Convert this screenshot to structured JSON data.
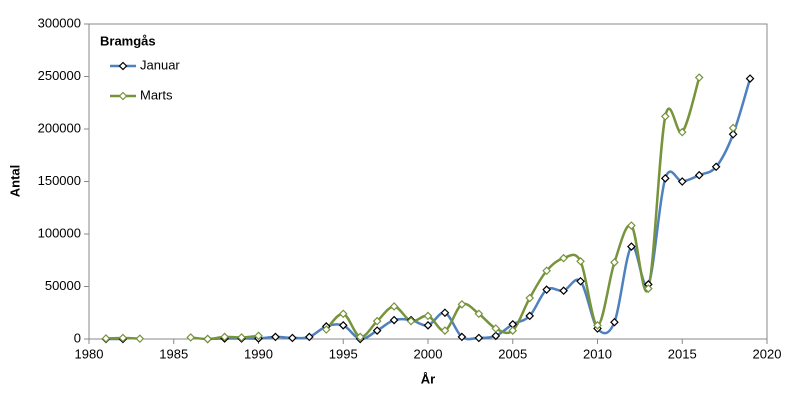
{
  "chart_data": {
    "type": "line",
    "legend_title": "Bramgås",
    "x_label": "År",
    "y_label": "Antal",
    "x": [
      1981,
      1982,
      1983,
      1984,
      1985,
      1986,
      1987,
      1988,
      1989,
      1990,
      1991,
      1992,
      1993,
      1994,
      1995,
      1996,
      1997,
      1998,
      1999,
      2000,
      2001,
      2002,
      2003,
      2004,
      2005,
      2006,
      2007,
      2008,
      2009,
      2010,
      2011,
      2012,
      2013,
      2014,
      2015,
      2016,
      2017,
      2018,
      2019
    ],
    "series": [
      {
        "name": "Januar",
        "color": "#4f81bd",
        "marker_color": "#000000",
        "values": [
          0,
          0,
          null,
          null,
          null,
          null,
          0,
          500,
          500,
          500,
          2000,
          1000,
          2000,
          12000,
          13000,
          0,
          8000,
          18000,
          18000,
          13000,
          25000,
          2000,
          1000,
          3000,
          14000,
          22000,
          47000,
          46000,
          55000,
          10000,
          16000,
          88000,
          52000,
          153000,
          150000,
          156000,
          164000,
          195000,
          248000
        ]
      },
      {
        "name": "Marts",
        "color": "#77933c",
        "marker_color": "#77933c",
        "values": [
          500,
          1000,
          300,
          null,
          null,
          1500,
          0,
          2000,
          1500,
          3000,
          null,
          null,
          null,
          9000,
          24000,
          2000,
          17000,
          31000,
          17000,
          22000,
          8000,
          33000,
          24000,
          10000,
          8000,
          39000,
          65000,
          77000,
          74000,
          13000,
          73000,
          108000,
          48000,
          212000,
          197000,
          249000,
          null,
          201000,
          null
        ]
      }
    ],
    "xlim": [
      1980,
      2020
    ],
    "xticks": [
      1980,
      1985,
      1990,
      1995,
      2000,
      2005,
      2010,
      2015,
      2020
    ],
    "ylim": [
      0,
      300000
    ],
    "yticks": [
      0,
      50000,
      100000,
      150000,
      200000,
      250000,
      300000
    ],
    "legend": "upper left"
  }
}
